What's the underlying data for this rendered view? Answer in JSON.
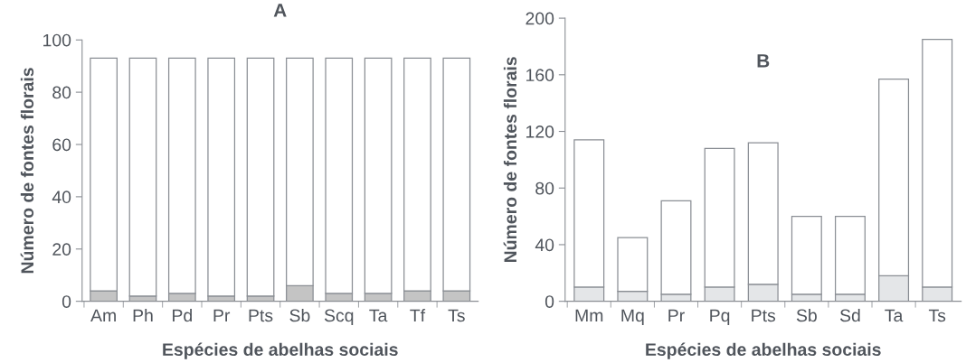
{
  "chart_data": [
    {
      "type": "bar",
      "title": "A",
      "xlabel": "Espécies de abelhas sociais",
      "ylabel": "Número de fontes florais",
      "stacked": true,
      "categories": [
        "Am",
        "Ph",
        "Pd",
        "Pr",
        "Pts",
        "Sb",
        "Scq",
        "Ta",
        "Tf",
        "Ts"
      ],
      "series": [
        {
          "color": "#c4c4c4",
          "values": [
            4,
            2,
            3,
            2,
            2,
            6,
            3,
            3,
            4,
            4
          ]
        },
        {
          "color": "#ffffff",
          "values": [
            89,
            91,
            90,
            91,
            91,
            87,
            90,
            90,
            89,
            89
          ]
        }
      ],
      "ylim": [
        0,
        100
      ],
      "yticks": [
        0,
        20,
        40,
        60,
        80,
        100
      ]
    },
    {
      "type": "bar",
      "title": "B",
      "xlabel": "Espécies de abelhas sociais",
      "ylabel": "Número de fontes florais",
      "stacked": true,
      "categories": [
        "Mm",
        "Mq",
        "Pr",
        "Pq",
        "Pts",
        "Sb",
        "Sd",
        "Ta",
        "Ts"
      ],
      "series": [
        {
          "color": "#e4e6e8",
          "values": [
            10,
            7,
            5,
            10,
            12,
            5,
            5,
            18,
            10
          ]
        },
        {
          "color": "#ffffff",
          "values": [
            104,
            38,
            66,
            98,
            100,
            55,
            55,
            139,
            175
          ]
        }
      ],
      "ylim": [
        0,
        200
      ],
      "yticks": [
        0,
        40,
        80,
        120,
        160,
        200
      ]
    }
  ]
}
